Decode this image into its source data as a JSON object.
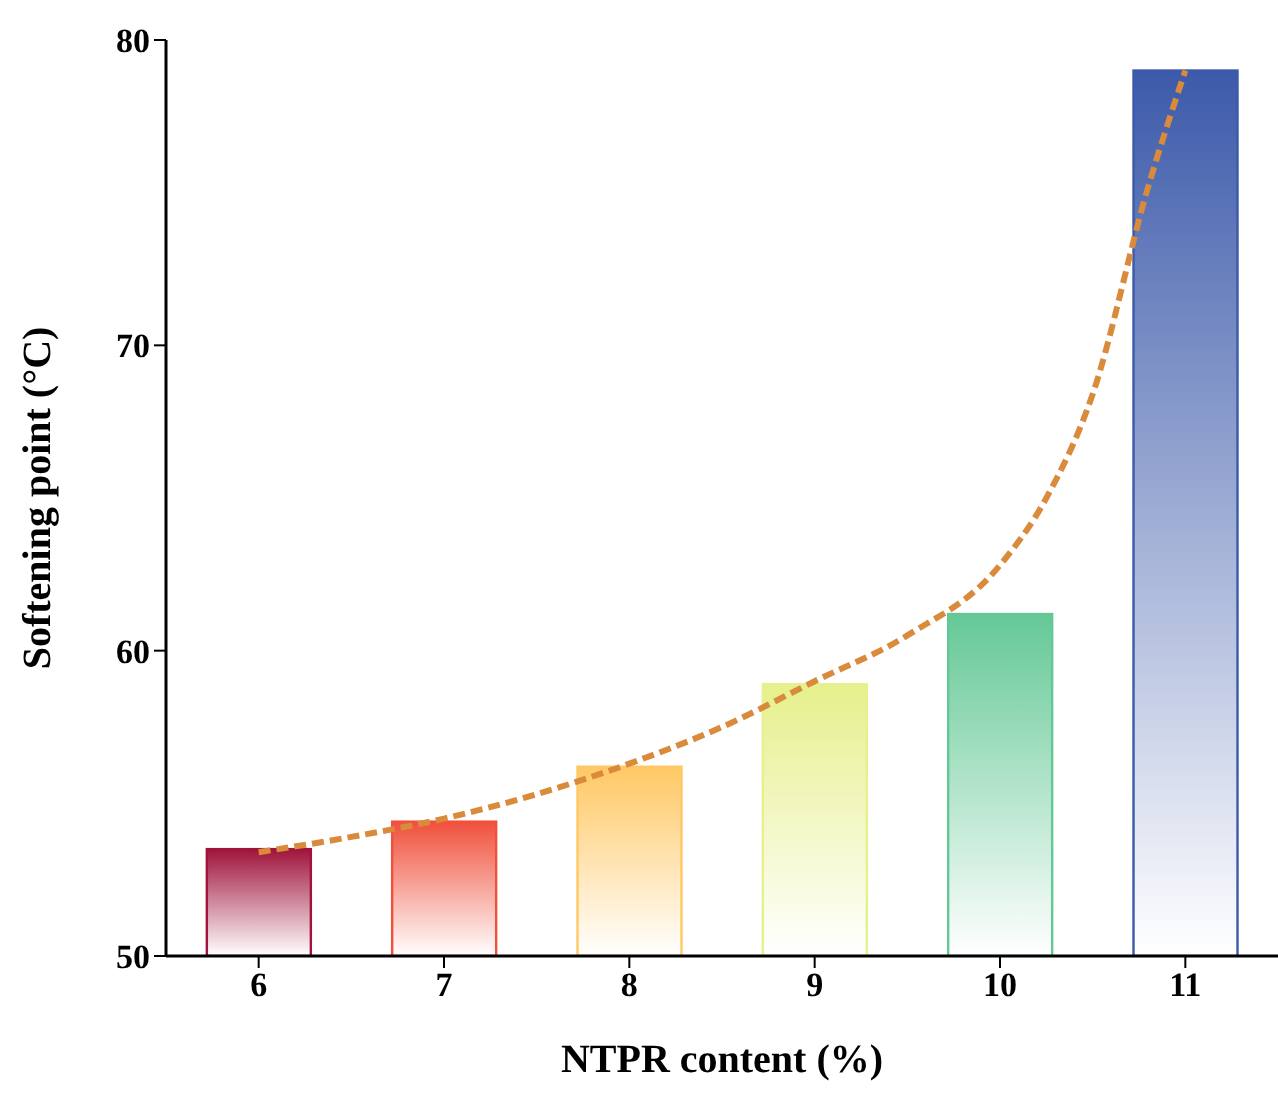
{
  "chart_data": {
    "type": "bar",
    "xlabel": "NTPR content (%)",
    "ylabel": "Softening point (°C)",
    "x": [
      6,
      7,
      8,
      9,
      10,
      11
    ],
    "xlim": [
      5.5,
      11.5
    ],
    "xticks": [
      6,
      7,
      8,
      9,
      10,
      11
    ],
    "ylim": [
      50,
      80
    ],
    "yticks": [
      50,
      60,
      70,
      80
    ],
    "values": [
      53.5,
      54.4,
      56.2,
      58.9,
      61.2,
      79.0
    ],
    "colors": [
      "#a0143c",
      "#f0503c",
      "#ffc864",
      "#e6f08c",
      "#64c896",
      "#3c5aaa"
    ],
    "series": [
      {
        "type": "line",
        "color": "#d98a3a",
        "line_style": "dashed",
        "marker": "none",
        "x": [
          6,
          6.5,
          7,
          7.5,
          8,
          8.5,
          9,
          9.5,
          10,
          10.25,
          10.5,
          10.8,
          11
        ],
        "values": [
          53.4,
          53.9,
          54.5,
          55.3,
          56.3,
          57.5,
          59.0,
          60.5,
          62.8,
          65.0,
          68.4,
          75.2,
          79.0
        ]
      }
    ]
  }
}
